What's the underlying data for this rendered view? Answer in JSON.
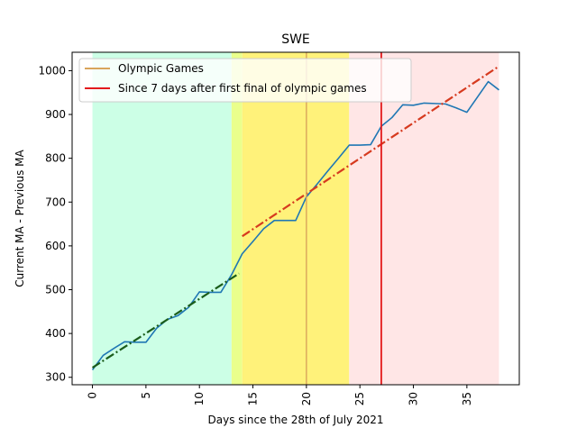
{
  "chart_data": {
    "type": "line",
    "title": "SWE",
    "xlabel": "Days since the 28th of July 2021",
    "ylabel": "Current MA - Previous MA",
    "xlim": [
      -1.9,
      39.9
    ],
    "ylim": [
      283,
      1042
    ],
    "x_ticks": [
      0,
      5,
      10,
      15,
      20,
      25,
      30,
      35
    ],
    "y_ticks": [
      300,
      400,
      500,
      600,
      700,
      800,
      900,
      1000
    ],
    "x_tick_labels": [
      "0",
      "5",
      "10",
      "15",
      "20",
      "25",
      "30",
      "35"
    ],
    "y_tick_labels": [
      "300",
      "400",
      "500",
      "600",
      "700",
      "800",
      "900",
      "1000"
    ],
    "grid": false,
    "legend_position": "top-left",
    "shaded_regions": [
      {
        "x0": 0,
        "x1": 13,
        "color": "#ccffe6"
      },
      {
        "x0": 13,
        "x1": 14,
        "color": "#eaff8c"
      },
      {
        "x0": 14,
        "x1": 24,
        "color": "#fff27a"
      },
      {
        "x0": 24,
        "x1": 38,
        "color": "#ffe6e6"
      }
    ],
    "series": [
      {
        "color": "#1f77b4",
        "style": "solid",
        "x": [
          0,
          1,
          2,
          3,
          4,
          5,
          6,
          7,
          8,
          9,
          10,
          11,
          12,
          13,
          14,
          15,
          16,
          17,
          18,
          19,
          20,
          21,
          22,
          23,
          24,
          25,
          26,
          27,
          28,
          29,
          30,
          31,
          32,
          33,
          34,
          35,
          36,
          37,
          38
        ],
        "values": [
          317,
          350,
          366,
          381,
          380,
          380,
          412,
          432,
          441,
          460,
          495,
          494,
          494,
          534,
          582,
          610,
          639,
          658,
          658,
          658,
          712,
          741,
          771,
          800,
          830,
          830,
          831,
          873,
          893,
          922,
          921,
          926,
          925,
          924,
          915,
          905,
          940,
          975,
          956
        ]
      },
      {
        "color": "#1a5c1a",
        "style": "dashdot",
        "x": [
          0,
          13.7
        ],
        "values": [
          322,
          537
        ]
      },
      {
        "color": "#d63a1f",
        "style": "dashdot",
        "x": [
          14,
          38
        ],
        "values": [
          622,
          1010
        ]
      }
    ],
    "vertical_lines": [
      {
        "name": "Olympic Games",
        "x": 20,
        "color": "#d9a45b"
      },
      {
        "name": "Since 7 days after first final of olympic games",
        "x": 27,
        "color": "#e31a1c"
      }
    ],
    "legend": [
      {
        "label": "Olympic Games",
        "color": "#d9a45b"
      },
      {
        "label": "Since 7 days after first final of olympic games",
        "color": "#e31a1c"
      }
    ]
  }
}
